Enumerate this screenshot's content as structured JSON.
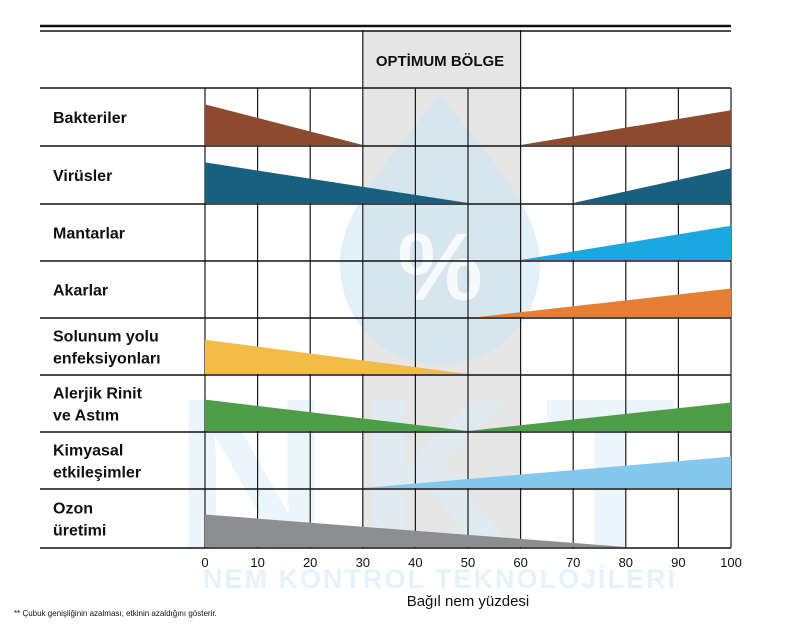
{
  "chart_data": {
    "type": "bar",
    "title": "",
    "optimum_zone": {
      "label": "OPTİMUM BÖLGE",
      "range": [
        30,
        60
      ]
    },
    "xlabel": "Bağıl nem yüzdesi",
    "xlim": [
      0,
      100
    ],
    "xticks": [
      0,
      10,
      20,
      30,
      40,
      50,
      60,
      70,
      80,
      90,
      100
    ],
    "grid": true,
    "footnote": "** Çubuk genişliğinin azalması, etkinin azaldığını gösterir.",
    "watermark": {
      "big": "NKT",
      "sub": "NEM KONTROL TEKNOLOJİLERİ",
      "symbol": "%"
    },
    "series": [
      {
        "name": "Bakteriler",
        "label_lines": [
          "Bakteriler"
        ],
        "color": "#8e4a2e",
        "segments": [
          {
            "from": 0,
            "to": 30,
            "start_width": 0.7,
            "end_width": 0
          },
          {
            "from": 60,
            "to": 100,
            "start_width": 0,
            "end_width": 0.6
          }
        ]
      },
      {
        "name": "Virüsler",
        "label_lines": [
          "Virüsler"
        ],
        "color": "#17607f",
        "segments": [
          {
            "from": 0,
            "to": 50,
            "start_width": 0.7,
            "end_width": 0
          },
          {
            "from": 70,
            "to": 100,
            "start_width": 0,
            "end_width": 0.6
          }
        ]
      },
      {
        "name": "Mantarlar",
        "label_lines": [
          "Mantarlar"
        ],
        "color": "#1ba8e0",
        "segments": [
          {
            "from": 60,
            "to": 100,
            "start_width": 0,
            "end_width": 0.6
          }
        ]
      },
      {
        "name": "Akarlar",
        "label_lines": [
          "Akarlar"
        ],
        "color": "#e67f35",
        "segments": [
          {
            "from": 52,
            "to": 100,
            "start_width": 0,
            "end_width": 0.5
          }
        ]
      },
      {
        "name": "Solunum yolu enfeksiyonları",
        "label_lines": [
          "Solunum yolu",
          "enfeksiyonları"
        ],
        "color": "#f2bc47",
        "segments": [
          {
            "from": 0,
            "to": 50,
            "start_width": 0.6,
            "end_width": 0
          }
        ]
      },
      {
        "name": "Alerjik Rinit ve Astım",
        "label_lines": [
          "Alerjik Rinit",
          "ve Astım"
        ],
        "color": "#4e9e49",
        "segments": [
          {
            "from": 0,
            "to": 50,
            "start_width": 0.55,
            "end_width": 0
          },
          {
            "from": 50,
            "to": 100,
            "start_width": 0,
            "end_width": 0.5
          }
        ]
      },
      {
        "name": "Kimyasal etkileşimler",
        "label_lines": [
          "Kimyasal",
          "etkileşimler"
        ],
        "color": "#85c8ee",
        "segments": [
          {
            "from": 30,
            "to": 100,
            "start_width": 0,
            "end_width": 0.55
          }
        ]
      },
      {
        "name": "Ozon üretimi",
        "label_lines": [
          "Ozon",
          "üretimi"
        ],
        "color": "#8d8e8f",
        "segments": [
          {
            "from": 0,
            "to": 80,
            "start_width": 0.55,
            "end_width": 0
          }
        ]
      }
    ]
  }
}
